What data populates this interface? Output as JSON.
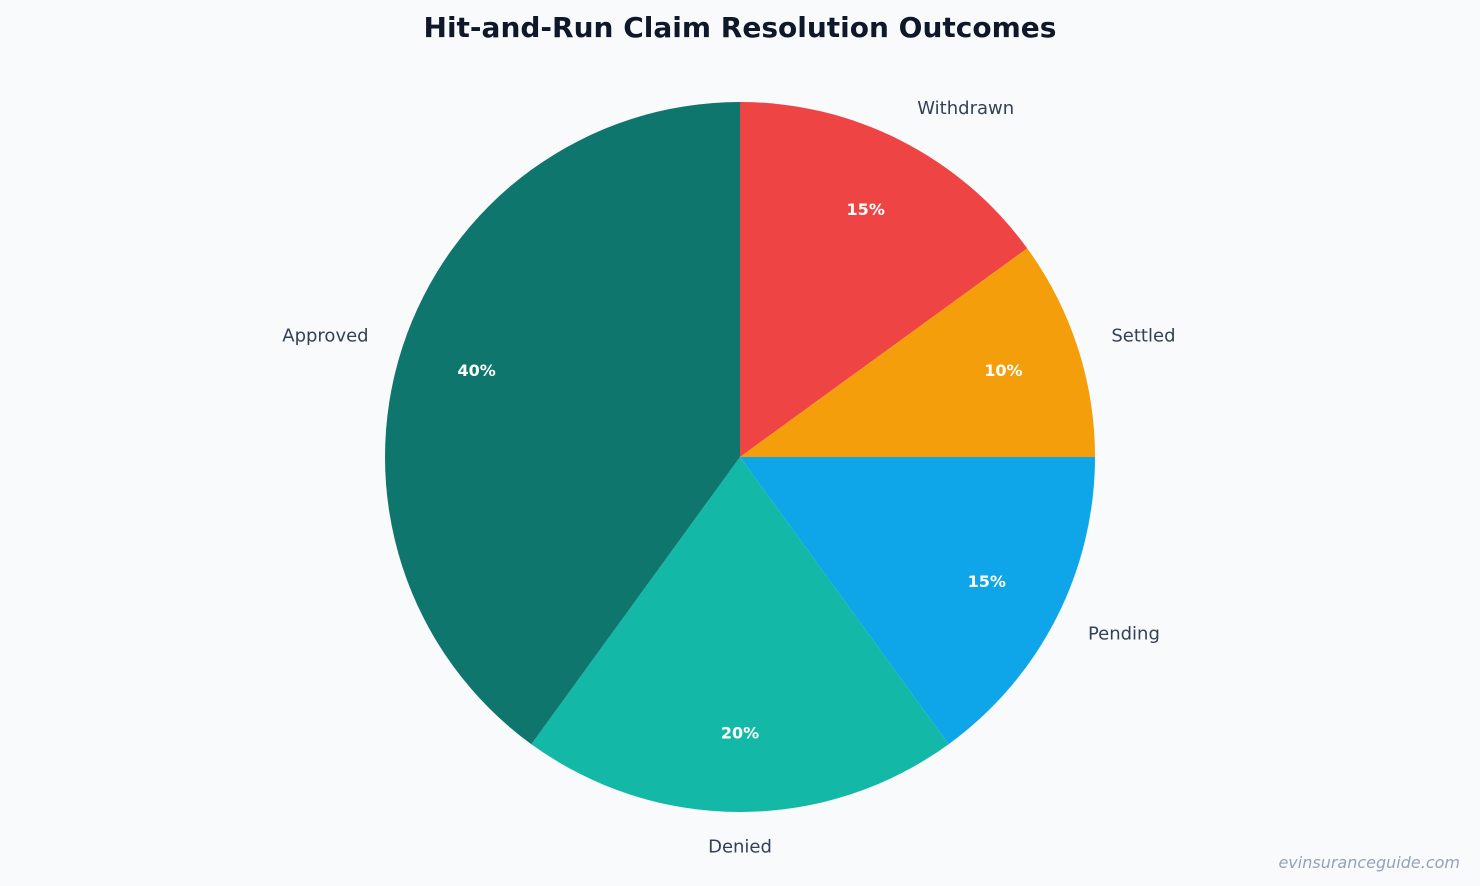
{
  "chart_data": {
    "type": "pie",
    "title": "Hit-and-Run Claim Resolution Outcomes",
    "start_angle_deg": 90,
    "direction": "clockwise",
    "slices": [
      {
        "label": "Withdrawn",
        "value": 15,
        "pct_label": "15%",
        "color": "#ef4444"
      },
      {
        "label": "Settled",
        "value": 10,
        "pct_label": "10%",
        "color": "#f59e0b"
      },
      {
        "label": "Pending",
        "value": 15,
        "pct_label": "15%",
        "color": "#0ea5e9"
      },
      {
        "label": "Denied",
        "value": 20,
        "pct_label": "20%",
        "color": "#14b8a6"
      },
      {
        "label": "Approved",
        "value": 40,
        "pct_label": "40%",
        "color": "#0f766e"
      }
    ]
  },
  "watermark": "evinsuranceguide.com"
}
